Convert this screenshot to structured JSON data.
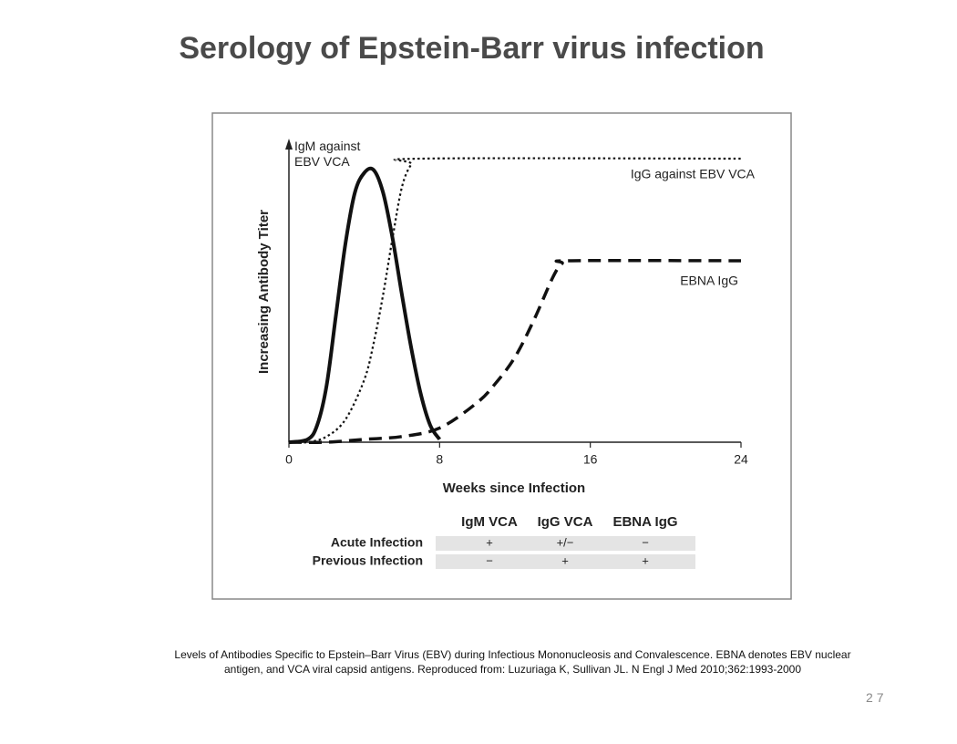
{
  "title": "Serology of Epstein-Barr virus infection",
  "chart_data": {
    "type": "line",
    "x_label": "Weeks since Infection",
    "y_label": "Increasing Antibody Titer",
    "xlim": [
      0,
      24
    ],
    "xticks": [
      0,
      8,
      16,
      24
    ],
    "ylim": [
      0,
      100
    ],
    "series": [
      {
        "name": "IgM against EBV VCA",
        "color": "#111111",
        "dash": "solid",
        "x": [
          0,
          1,
          1.5,
          2,
          2.5,
          3,
          3.5,
          4,
          4.5,
          5,
          5.5,
          6,
          6.5,
          7,
          7.5,
          8
        ],
        "values": [
          0,
          1,
          6,
          20,
          45,
          70,
          88,
          95,
          96,
          88,
          72,
          52,
          33,
          17,
          6,
          1
        ]
      },
      {
        "name": "IgG against EBV VCA",
        "color": "#111111",
        "dash": "dotted",
        "x": [
          0,
          1,
          2,
          3,
          4,
          4.5,
          5,
          5.5,
          6,
          6.5,
          7,
          24
        ],
        "values": [
          0,
          0,
          2,
          8,
          22,
          35,
          52,
          72,
          90,
          98,
          100,
          100
        ]
      },
      {
        "name": "EBNA IgG",
        "color": "#111111",
        "dash": "dashed",
        "x": [
          0,
          2,
          4,
          6,
          8,
          10,
          11,
          12,
          13,
          14,
          14.5,
          15,
          24
        ],
        "values": [
          0,
          0,
          1,
          2,
          5,
          14,
          21,
          30,
          43,
          58,
          63,
          64,
          64
        ]
      }
    ],
    "table": {
      "columns": [
        "IgM VCA",
        "IgG VCA",
        "EBNA IgG"
      ],
      "rows": [
        {
          "label": "Acute Infection",
          "cells": [
            "+",
            "+/−",
            "−"
          ]
        },
        {
          "label": "Previous Infection",
          "cells": [
            "−",
            "+",
            "+"
          ]
        }
      ]
    }
  },
  "caption": "Levels of Antibodies Specific to Epstein–Barr Virus (EBV) during Infectious Mononucleosis and Convalescence. EBNA denotes EBV nuclear antigen, and VCA viral capsid antigens. Reproduced from: Luzuriaga K, Sullivan JL. N Engl J Med 2010;362:1993-2000",
  "page_number": "27"
}
